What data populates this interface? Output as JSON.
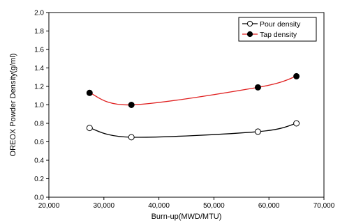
{
  "chart_data": {
    "type": "line",
    "xlabel": "Burn-up(MWD/MTU)",
    "ylabel": "OREOX Powder Density(g/ml)",
    "xlim": [
      20000,
      70000
    ],
    "ylim": [
      0.0,
      2.0
    ],
    "xticks": [
      20000,
      30000,
      40000,
      50000,
      60000,
      70000
    ],
    "xtick_labels": [
      "20,000",
      "30,000",
      "40,000",
      "50,000",
      "60,000",
      "70,000"
    ],
    "yticks": [
      0.0,
      0.2,
      0.4,
      0.6,
      0.8,
      1.0,
      1.2,
      1.4,
      1.6,
      1.8,
      2.0
    ],
    "ytick_labels": [
      "0.0",
      "0.2",
      "0.4",
      "0.6",
      "0.8",
      "1.0",
      "1.2",
      "1.4",
      "1.6",
      "1.8",
      "2.0"
    ],
    "grid": false,
    "legend_position": "top-right",
    "series": [
      {
        "name": "Pour density",
        "marker": "open-circle",
        "color": "#000000",
        "line_color": "#000000",
        "x": [
          27400,
          35000,
          58000,
          65000
        ],
        "y": [
          0.75,
          0.65,
          0.71,
          0.8
        ]
      },
      {
        "name": "Tap density",
        "marker": "filled-circle",
        "color": "#000000",
        "line_color": "#e02020",
        "x": [
          27400,
          35000,
          58000,
          65000
        ],
        "y": [
          1.13,
          1.0,
          1.19,
          1.31
        ]
      }
    ]
  }
}
